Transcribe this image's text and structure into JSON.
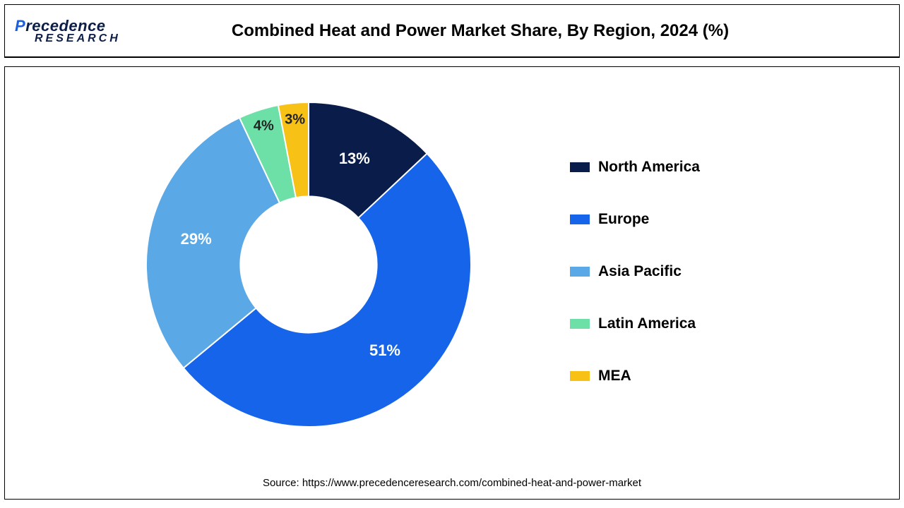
{
  "logo": {
    "brand_part1": "P",
    "brand_part2": "recedence",
    "brand_sub": "RESEARCH"
  },
  "title": "Combined Heat and Power Market Share, By Region, 2024 (%)",
  "chart": {
    "type": "donut",
    "start_angle_deg": 0,
    "inner_radius_ratio": 0.42,
    "background_color": "#ffffff",
    "label_fontsize": 22,
    "label_color": "#ffffff",
    "segments": [
      {
        "name": "North America",
        "value": 13,
        "color": "#0a1d4a",
        "pct_text": "13%"
      },
      {
        "name": "Europe",
        "value": 51,
        "color": "#1664e9",
        "pct_text": "51%"
      },
      {
        "name": "Asia Pacific",
        "value": 29,
        "color": "#5aa9e6",
        "pct_text": "29%"
      },
      {
        "name": "Latin America",
        "value": 4,
        "color": "#6de0a8",
        "pct_text": "4%"
      },
      {
        "name": "MEA",
        "value": 3,
        "color": "#f7c115",
        "pct_text": "3%"
      }
    ],
    "small_label_color": "#222222"
  },
  "legend": {
    "fontsize": 21,
    "text_color": "#000000",
    "items": [
      {
        "label": "North America",
        "color": "#0a1d4a"
      },
      {
        "label": "Europe",
        "color": "#1664e9"
      },
      {
        "label": "Asia Pacific",
        "color": "#5aa9e6"
      },
      {
        "label": "Latin America",
        "color": "#6de0a8"
      },
      {
        "label": "MEA",
        "color": "#f7c115"
      }
    ]
  },
  "source": "Source: https://www.precedenceresearch.com/combined-heat-and-power-market"
}
